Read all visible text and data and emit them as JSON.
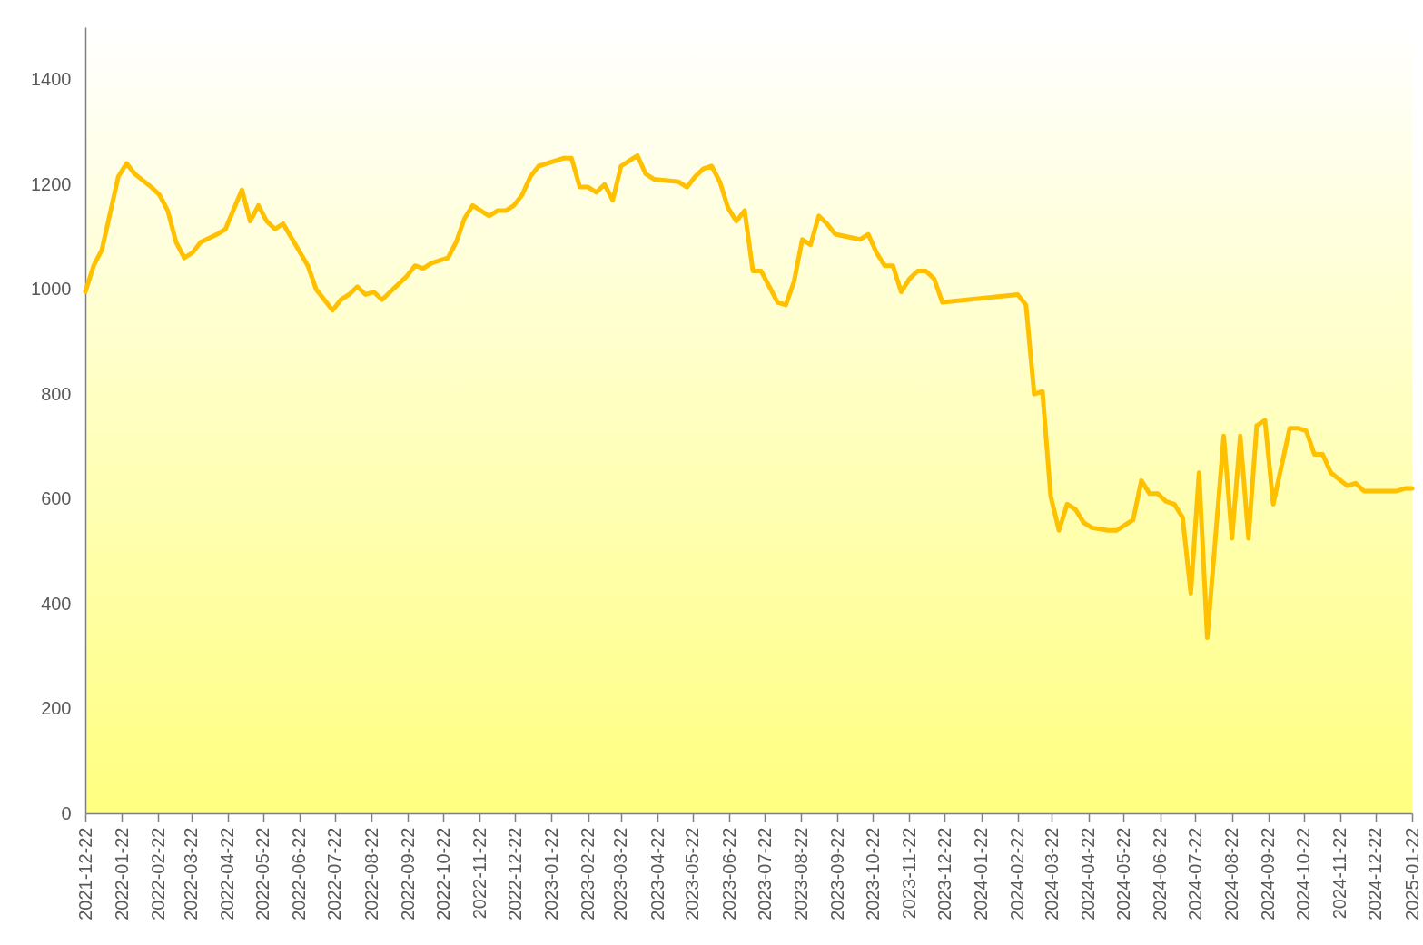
{
  "chart_data": {
    "type": "line",
    "x": [
      "2021-12-22",
      "2021-12-29",
      "2022-01-05",
      "2022-01-19",
      "2022-01-26",
      "2022-02-02",
      "2022-02-16",
      "2022-02-23",
      "2022-03-02",
      "2022-03-09",
      "2022-03-16",
      "2022-03-23",
      "2022-03-30",
      "2022-04-13",
      "2022-04-20",
      "2022-05-04",
      "2022-05-11",
      "2022-05-18",
      "2022-05-25",
      "2022-06-01",
      "2022-06-08",
      "2022-06-29",
      "2022-07-06",
      "2022-07-20",
      "2022-07-27",
      "2022-08-03",
      "2022-08-10",
      "2022-08-17",
      "2022-08-24",
      "2022-08-31",
      "2022-09-07",
      "2022-09-14",
      "2022-09-21",
      "2022-09-28",
      "2022-10-05",
      "2022-10-12",
      "2022-10-19",
      "2022-10-26",
      "2022-11-02",
      "2022-11-09",
      "2022-11-16",
      "2022-11-23",
      "2022-11-30",
      "2022-12-07",
      "2022-12-14",
      "2022-12-21",
      "2022-12-28",
      "2023-01-04",
      "2023-01-11",
      "2023-02-01",
      "2023-02-08",
      "2023-02-15",
      "2023-02-22",
      "2023-03-01",
      "2023-03-08",
      "2023-03-15",
      "2023-03-22",
      "2023-03-29",
      "2023-04-05",
      "2023-04-12",
      "2023-04-19",
      "2023-05-10",
      "2023-05-17",
      "2023-05-24",
      "2023-05-31",
      "2023-06-07",
      "2023-06-14",
      "2023-06-21",
      "2023-06-28",
      "2023-07-05",
      "2023-07-12",
      "2023-07-19",
      "2023-07-26",
      "2023-08-02",
      "2023-08-09",
      "2023-08-16",
      "2023-08-23",
      "2023-08-30",
      "2023-09-06",
      "2023-09-13",
      "2023-09-20",
      "2023-10-11",
      "2023-10-18",
      "2023-10-25",
      "2023-11-01",
      "2023-11-08",
      "2023-11-15",
      "2023-11-22",
      "2023-11-29",
      "2023-12-06",
      "2023-12-13",
      "2023-12-20",
      "2024-02-22",
      "2024-02-29",
      "2024-03-07",
      "2024-03-14",
      "2024-03-21",
      "2024-03-28",
      "2024-04-04",
      "2024-04-11",
      "2024-04-18",
      "2024-04-25",
      "2024-05-09",
      "2024-05-16",
      "2024-05-23",
      "2024-05-30",
      "2024-06-06",
      "2024-06-13",
      "2024-06-20",
      "2024-06-27",
      "2024-07-04",
      "2024-07-11",
      "2024-07-18",
      "2024-07-25",
      "2024-08-01",
      "2024-08-15",
      "2024-08-22",
      "2024-08-29",
      "2024-09-05",
      "2024-09-12",
      "2024-09-19",
      "2024-09-26",
      "2024-10-10",
      "2024-10-17",
      "2024-10-24",
      "2024-10-31",
      "2024-11-07",
      "2024-11-14",
      "2024-11-28",
      "2024-12-05",
      "2024-12-12",
      "2025-01-09",
      "2025-01-16",
      "2025-01-22"
    ],
    "series": [
      {
        "color": "#ffc000",
        "values": [
          995,
          1045,
          1075,
          1215,
          1240,
          1220,
          1195,
          1180,
          1150,
          1090,
          1060,
          1070,
          1090,
          1105,
          1115,
          1190,
          1130,
          1160,
          1130,
          1115,
          1125,
          1045,
          1000,
          960,
          980,
          990,
          1005,
          990,
          995,
          980,
          995,
          1010,
          1025,
          1045,
          1040,
          1050,
          1055,
          1060,
          1090,
          1135,
          1160,
          1150,
          1140,
          1150,
          1150,
          1160,
          1180,
          1215,
          1235,
          1250,
          1250,
          1195,
          1195,
          1185,
          1200,
          1170,
          1235,
          1245,
          1255,
          1220,
          1210,
          1205,
          1195,
          1215,
          1230,
          1235,
          1205,
          1155,
          1130,
          1150,
          1035,
          1035,
          1005,
          975,
          970,
          1015,
          1095,
          1085,
          1140,
          1125,
          1105,
          1095,
          1105,
          1070,
          1045,
          1045,
          995,
          1020,
          1035,
          1035,
          1020,
          975,
          990,
          970,
          800,
          805,
          605,
          540,
          590,
          580,
          555,
          545,
          540,
          540,
          550,
          560,
          635,
          610,
          610,
          595,
          590,
          565,
          420,
          650,
          335,
          720,
          525,
          720,
          525,
          740,
          750,
          590,
          735,
          735,
          730,
          685,
          685,
          650,
          625,
          630,
          615,
          615,
          620,
          620
        ]
      }
    ],
    "xlim": [
      "2021-12-22",
      "2025-01-22"
    ],
    "xticks": [
      "2021-12-22",
      "2022-01-22",
      "2022-02-22",
      "2022-03-22",
      "2022-04-22",
      "2022-05-22",
      "2022-06-22",
      "2022-07-22",
      "2022-08-22",
      "2022-09-22",
      "2022-10-22",
      "2022-11-22",
      "2022-12-22",
      "2023-01-22",
      "2023-02-22",
      "2023-03-22",
      "2023-04-22",
      "2023-05-22",
      "2023-06-22",
      "2023-07-22",
      "2023-08-22",
      "2023-09-22",
      "2023-10-22",
      "2023-11-22",
      "2023-12-22",
      "2024-01-22",
      "2024-02-22",
      "2024-03-22",
      "2024-04-22",
      "2024-05-22",
      "2024-06-22",
      "2024-07-22",
      "2024-08-22",
      "2024-09-22",
      "2024-10-22",
      "2024-11-22",
      "2024-12-22",
      "2025-01-22"
    ],
    "ylim": [
      0,
      1500
    ],
    "yticks": [
      0,
      200,
      400,
      600,
      800,
      1000,
      1200,
      1400
    ]
  }
}
